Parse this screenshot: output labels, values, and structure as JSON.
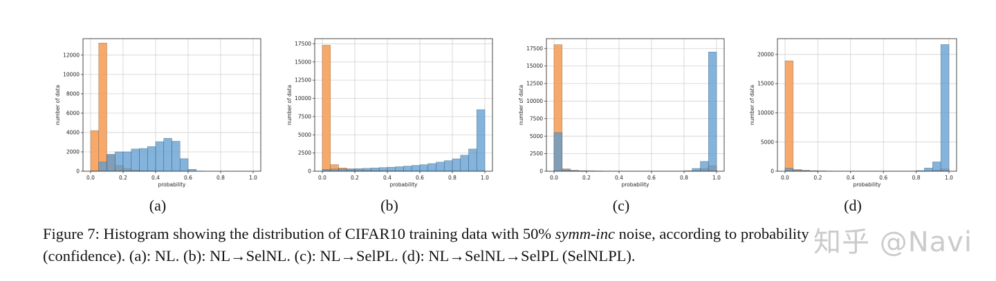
{
  "colors": {
    "orange": "#f5a05a",
    "blue": "#5b9bd0",
    "overlap": "#8f7560",
    "grid": "#d0d0d0",
    "axis": "#333333"
  },
  "chart_data": [
    {
      "type": "bar",
      "panel": "(a)",
      "xlabel": "probability",
      "ylabel": "number of data",
      "xlim": [
        0,
        1
      ],
      "ylim": [
        0,
        13700
      ],
      "xticks": [
        "0.0",
        "0.2",
        "0.4",
        "0.6",
        "0.8",
        "1.0"
      ],
      "yticks": [
        0,
        2000,
        4000,
        6000,
        8000,
        10000,
        12000
      ],
      "ytick_labels": [
        "0",
        "2000",
        "4000",
        "6000",
        "8000",
        "10000",
        "12000"
      ],
      "bin_width": 0.05,
      "series": [
        {
          "name": "orange",
          "values": [
            4200,
            13250,
            1700,
            600,
            280,
            120,
            60,
            30,
            20,
            0,
            0,
            0,
            0,
            0,
            0,
            0,
            0,
            0,
            0,
            0
          ]
        },
        {
          "name": "blue",
          "values": [
            30,
            950,
            1750,
            2000,
            2000,
            2300,
            2350,
            2550,
            3050,
            3400,
            3100,
            1300,
            200,
            20,
            0,
            0,
            0,
            0,
            0,
            0
          ]
        }
      ]
    },
    {
      "type": "bar",
      "panel": "(b)",
      "xlabel": "probability",
      "ylabel": "number of data",
      "xlim": [
        0,
        1
      ],
      "ylim": [
        0,
        18200
      ],
      "xticks": [
        "0.0",
        "0.2",
        "0.4",
        "0.6",
        "0.8",
        "1.0"
      ],
      "yticks": [
        0,
        2500,
        5000,
        7500,
        10000,
        12500,
        15000,
        17500
      ],
      "ytick_labels": [
        "0",
        "2500",
        "5000",
        "7500",
        "10000",
        "12500",
        "15000",
        "17500"
      ],
      "bin_width": 0.05,
      "series": [
        {
          "name": "orange",
          "values": [
            17300,
            900,
            450,
            280,
            200,
            150,
            100,
            80,
            60,
            50,
            40,
            30,
            20,
            20,
            10,
            10,
            10,
            10,
            10,
            10
          ]
        },
        {
          "name": "blue",
          "values": [
            250,
            300,
            300,
            330,
            360,
            400,
            450,
            500,
            550,
            620,
            700,
            800,
            900,
            1050,
            1250,
            1450,
            1700,
            2200,
            3050,
            8450
          ]
        }
      ]
    },
    {
      "type": "bar",
      "panel": "(c)",
      "xlabel": "probability",
      "ylabel": "number of data",
      "xlim": [
        0,
        1
      ],
      "ylim": [
        0,
        18900
      ],
      "xticks": [
        "0.0",
        "0.2",
        "0.4",
        "0.6",
        "0.8",
        "1.0"
      ],
      "yticks": [
        0,
        2500,
        5000,
        7500,
        10000,
        12500,
        15000,
        17500
      ],
      "ytick_labels": [
        "0",
        "2500",
        "5000",
        "7500",
        "10000",
        "12500",
        "15000",
        "17500"
      ],
      "bin_width": 0.05,
      "series": [
        {
          "name": "orange",
          "values": [
            18050,
            350,
            120,
            70,
            50,
            30,
            20,
            10,
            10,
            10,
            10,
            10,
            10,
            10,
            10,
            10,
            20,
            100,
            400,
            800
          ]
        },
        {
          "name": "blue",
          "values": [
            5500,
            200,
            100,
            60,
            40,
            30,
            20,
            10,
            10,
            10,
            10,
            10,
            10,
            10,
            10,
            20,
            60,
            400,
            1400,
            17000
          ]
        }
      ]
    },
    {
      "type": "bar",
      "panel": "(d)",
      "xlabel": "probability",
      "ylabel": "number of data",
      "xlim": [
        0,
        1
      ],
      "ylim": [
        0,
        22700
      ],
      "xticks": [
        "0.0",
        "0.2",
        "0.4",
        "0.6",
        "0.8",
        "1.0"
      ],
      "yticks": [
        0,
        5000,
        10000,
        15000,
        20000
      ],
      "ytick_labels": [
        "0",
        "5000",
        "10000",
        "15000",
        "20000"
      ],
      "bin_width": 0.05,
      "series": [
        {
          "name": "orange",
          "values": [
            18900,
            300,
            150,
            80,
            50,
            30,
            20,
            10,
            10,
            10,
            10,
            10,
            10,
            10,
            10,
            10,
            20,
            60,
            150,
            400
          ]
        },
        {
          "name": "blue",
          "values": [
            500,
            150,
            100,
            60,
            40,
            20,
            10,
            10,
            10,
            10,
            10,
            10,
            10,
            10,
            10,
            20,
            100,
            550,
            1600,
            21700
          ]
        }
      ]
    }
  ],
  "caption": {
    "lead": "Figure 7: Histogram showing the distribution of CIFAR10 training data with 50% ",
    "italic": "symm-inc",
    "mid": " noise, according to probability",
    "line2": "(confidence). (a): NL. (b): NL→SelNL. (c): NL→SelPL. (d): NL→SelNL→SelPL (SelNLPL)."
  },
  "watermark": "知乎 @Navi"
}
